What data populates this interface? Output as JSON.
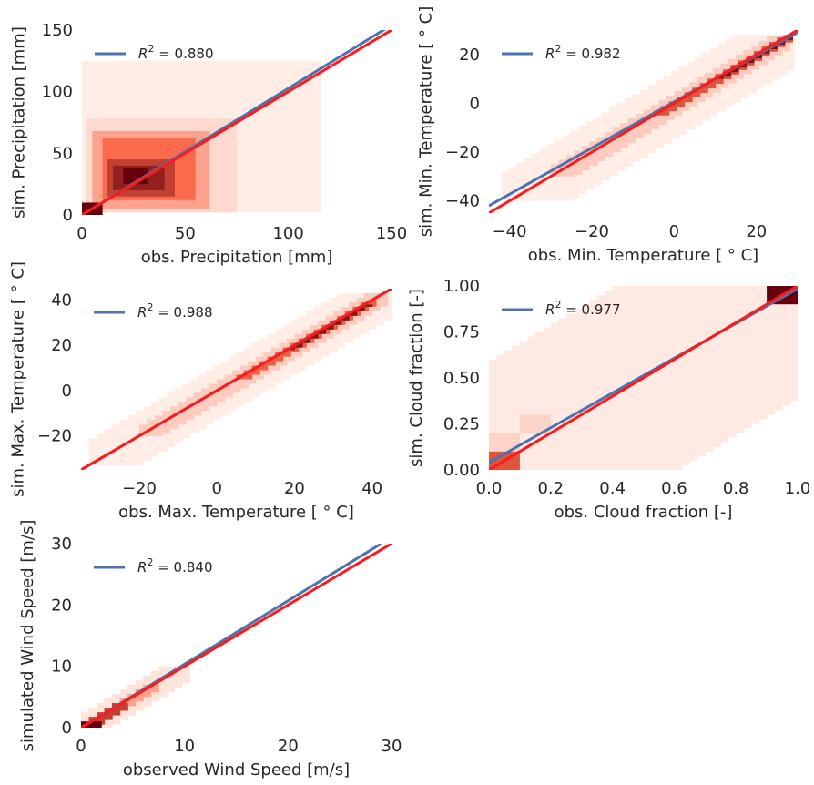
{
  "colors": {
    "fit_line": "#4c72b0",
    "identity_line": "#ff1a1a",
    "heat_low": "#fff5f0",
    "heat_mid": "#fb6a4a",
    "heat_high": "#67000d"
  },
  "chart_data": [
    {
      "type": "heatmap",
      "xlabel": "obs. Precipitation [mm]",
      "ylabel": "sim. Precipitation [mm]",
      "xlim": [
        0,
        150
      ],
      "ylim": [
        0,
        150
      ],
      "xticks": [
        "0",
        "50",
        "100",
        "150"
      ],
      "xtick_values": [
        0,
        50,
        100,
        150
      ],
      "yticks": [
        "0",
        "50",
        "100",
        "150"
      ],
      "ytick_values": [
        0,
        50,
        100,
        150
      ],
      "legend": {
        "label": "R",
        "sup": "2",
        "value": " = 0.880"
      },
      "fit_line": {
        "x": [
          0,
          150
        ],
        "y": [
          0,
          154
        ]
      },
      "identity_line": {
        "x": [
          0,
          150
        ],
        "y": [
          0,
          150
        ]
      },
      "bins": [
        {
          "x": [
            0,
            116
          ],
          "y": [
            2,
            125
          ],
          "d": 0.03
        },
        {
          "x": [
            2,
            75
          ],
          "y": [
            2,
            78
          ],
          "d": 0.1
        },
        {
          "x": [
            5,
            62
          ],
          "y": [
            5,
            68
          ],
          "d": 0.3
        },
        {
          "x": [
            10,
            55
          ],
          "y": [
            12,
            62
          ],
          "d": 0.5
        },
        {
          "x": [
            12,
            45
          ],
          "y": [
            15,
            45
          ],
          "d": 0.7
        },
        {
          "x": [
            15,
            40
          ],
          "y": [
            20,
            40
          ],
          "d": 0.85
        },
        {
          "x": [
            20,
            32
          ],
          "y": [
            25,
            38
          ],
          "d": 1.0
        },
        {
          "x": [
            0,
            10
          ],
          "y": [
            0,
            10
          ],
          "d": 1.0
        }
      ]
    },
    {
      "type": "heatmap",
      "xlabel": "obs. Min. Temperature [ ° C]",
      "ylabel": "sim. Min. Temperature [ ° C]",
      "xlim": [
        -45,
        30
      ],
      "ylim": [
        -45,
        30
      ],
      "xticks": [
        "−40",
        "−20",
        "0",
        "20"
      ],
      "xtick_values": [
        -40,
        -20,
        0,
        20
      ],
      "yticks": [
        "−40",
        "−20",
        "0",
        "20"
      ],
      "ytick_values": [
        -40,
        -20,
        0,
        20
      ],
      "legend": {
        "label": "R",
        "sup": "2",
        "value": " = 0.982"
      },
      "fit_line": {
        "x": [
          -45,
          30
        ],
        "y": [
          -42,
          29
        ]
      },
      "identity_line": {
        "x": [
          -45,
          30
        ],
        "y": [
          -45,
          30
        ]
      },
      "bins": [
        {
          "x": [
            -42,
            28
          ],
          "y": [
            -40,
            28
          ],
          "d": 0.03,
          "band": 14
        },
        {
          "x": [
            -30,
            28
          ],
          "y": [
            -30,
            28
          ],
          "d": 0.15,
          "band": 5
        },
        {
          "x": [
            -5,
            28
          ],
          "y": [
            -5,
            28
          ],
          "d": 0.6,
          "band": 2
        },
        {
          "x": [
            10,
            28
          ],
          "y": [
            10,
            28
          ],
          "d": 0.9,
          "band": 1
        }
      ]
    },
    {
      "type": "heatmap",
      "xlabel": "obs. Max. Temperature [ ° C]",
      "ylabel": "sim. Max. Temperature [ ° C]",
      "xlim": [
        -35,
        45
      ],
      "ylim": [
        -35,
        45
      ],
      "xticks": [
        "−20",
        "0",
        "20",
        "40"
      ],
      "xtick_values": [
        -20,
        0,
        20,
        40
      ],
      "yticks": [
        "−20",
        "0",
        "20",
        "40"
      ],
      "ytick_values": [
        -20,
        0,
        20,
        40
      ],
      "legend": {
        "label": "R",
        "sup": "2",
        "value": " = 0.988"
      },
      "fit_line": {
        "x": [
          -35,
          45
        ],
        "y": [
          -35,
          45
        ]
      },
      "identity_line": {
        "x": [
          -35,
          45
        ],
        "y": [
          -35,
          45
        ]
      },
      "bins": [
        {
          "x": [
            -33,
            43
          ],
          "y": [
            -33,
            43
          ],
          "d": 0.03,
          "band": 12
        },
        {
          "x": [
            -20,
            43
          ],
          "y": [
            -20,
            43
          ],
          "d": 0.15,
          "band": 5
        },
        {
          "x": [
            5,
            40
          ],
          "y": [
            5,
            40
          ],
          "d": 0.55,
          "band": 2
        },
        {
          "x": [
            18,
            38
          ],
          "y": [
            18,
            38
          ],
          "d": 0.9,
          "band": 1
        }
      ]
    },
    {
      "type": "heatmap",
      "xlabel": "obs. Cloud fraction [-]",
      "ylabel": "sim. Cloud fraction [-]",
      "xlim": [
        0,
        1
      ],
      "ylim": [
        0,
        1
      ],
      "xticks": [
        "0.0",
        "0.2",
        "0.4",
        "0.6",
        "0.8",
        "1.0"
      ],
      "xtick_values": [
        0,
        0.2,
        0.4,
        0.6,
        0.8,
        1.0
      ],
      "yticks": [
        "0.00",
        "0.25",
        "0.50",
        "0.75",
        "1.00"
      ],
      "ytick_values": [
        0,
        0.25,
        0.5,
        0.75,
        1.0
      ],
      "legend": {
        "label": "R",
        "sup": "2",
        "value": " = 0.977"
      },
      "fit_line": {
        "x": [
          0,
          1
        ],
        "y": [
          0.04,
          0.985
        ]
      },
      "identity_line": {
        "x": [
          0,
          1
        ],
        "y": [
          0,
          1
        ]
      },
      "bins": [
        {
          "x": [
            0.0,
            1.0
          ],
          "y": [
            0.0,
            1.0
          ],
          "d": 0.04,
          "band": 0.6
        },
        {
          "x": [
            0.0,
            0.1
          ],
          "y": [
            0.1,
            0.2
          ],
          "d": 0.12
        },
        {
          "x": [
            0.1,
            0.2
          ],
          "y": [
            0.2,
            0.3
          ],
          "d": 0.12
        },
        {
          "x": [
            0.0,
            0.1
          ],
          "y": [
            0.0,
            0.1
          ],
          "d": 0.6
        },
        {
          "x": [
            0.9,
            1.0
          ],
          "y": [
            0.9,
            1.0
          ],
          "d": 1.0
        }
      ]
    },
    {
      "type": "heatmap",
      "xlabel": "observed Wind Speed [m/s]",
      "ylabel": "simulated Wind Speed [m/s]",
      "xlim": [
        0,
        30
      ],
      "ylim": [
        0,
        30
      ],
      "xticks": [
        "0",
        "10",
        "20",
        "30"
      ],
      "xtick_values": [
        0,
        10,
        20,
        30
      ],
      "yticks": [
        "0",
        "10",
        "20",
        "30"
      ],
      "ytick_values": [
        0,
        10,
        20,
        30
      ],
      "legend": {
        "label": "R",
        "sup": "2",
        "value": " = 0.840"
      },
      "fit_line": {
        "x": [
          0,
          29
        ],
        "y": [
          0,
          30
        ]
      },
      "identity_line": {
        "x": [
          0,
          30
        ],
        "y": [
          0,
          30
        ]
      },
      "bins": [
        {
          "x": [
            0,
            10
          ],
          "y": [
            0,
            10
          ],
          "d": 0.06,
          "band": 2.5
        },
        {
          "x": [
            0,
            7
          ],
          "y": [
            0,
            7
          ],
          "d": 0.3,
          "band": 1
        },
        {
          "x": [
            0,
            4
          ],
          "y": [
            0,
            4
          ],
          "d": 0.7,
          "band": 1
        },
        {
          "x": [
            0,
            2
          ],
          "y": [
            0,
            1
          ],
          "d": 1.0
        }
      ]
    }
  ]
}
